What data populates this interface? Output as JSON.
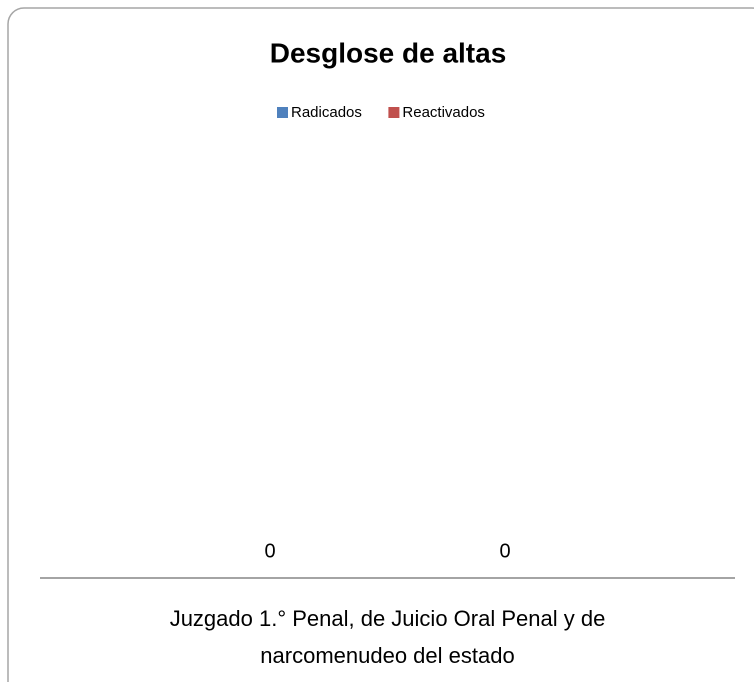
{
  "chart_data": {
    "type": "bar",
    "title": "Desglose de altas",
    "categories": [
      "Juzgado 1.° Penal, de Juicio Oral Penal y de narcomenudeo del estado"
    ],
    "series": [
      {
        "name": "Radicados",
        "color": "#4f81bd",
        "values": [
          0
        ]
      },
      {
        "name": "Reactivados",
        "color": "#c0504d",
        "values": [
          0
        ]
      }
    ],
    "legend": "top"
  }
}
